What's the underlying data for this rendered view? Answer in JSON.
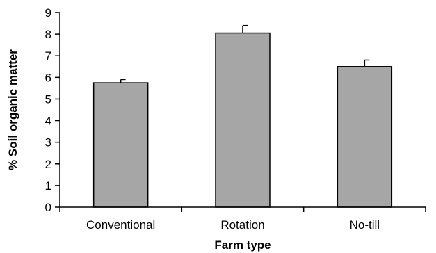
{
  "chart_data": {
    "type": "bar",
    "categories": [
      "Conventional",
      "Rotation",
      "No-till"
    ],
    "values": [
      5.75,
      8.05,
      6.5
    ],
    "error_bars": [
      0.15,
      0.35,
      0.3
    ],
    "xlabel": "Farm type",
    "ylabel": "% Soil organic matter",
    "ylim": [
      0,
      9
    ],
    "yticks": [
      0,
      1,
      2,
      3,
      4,
      5,
      6,
      7,
      8,
      9
    ],
    "grid": false,
    "bar_color": "#a6a6a6",
    "bar_edge_color": "#000000"
  }
}
